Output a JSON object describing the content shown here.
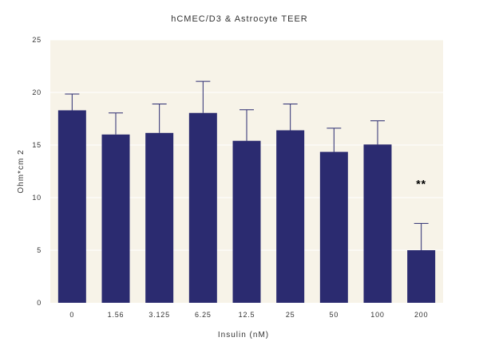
{
  "chart_data": {
    "type": "bar",
    "title": "hCMEC/D3 & Astrocyte TEER",
    "xlabel": "Insulin (nM)",
    "ylabel": "Ohm*cm 2",
    "categories": [
      "0",
      "1.56",
      "3.125",
      "6.25",
      "12.5",
      "25",
      "50",
      "100",
      "200"
    ],
    "values": [
      18.3,
      16.0,
      16.15,
      18.05,
      15.4,
      16.4,
      14.35,
      15.05,
      5.0
    ],
    "errors": [
      1.55,
      2.05,
      2.75,
      3.0,
      2.95,
      2.5,
      2.25,
      2.25,
      2.55
    ],
    "ylim": [
      0,
      25
    ],
    "yticks": [
      0,
      5,
      10,
      15,
      20,
      25
    ],
    "grid": true,
    "annotations": [
      {
        "category": "200",
        "text": "**"
      }
    ],
    "colors": {
      "bar": "#2b2b70",
      "plot_background": "#f7f3e8",
      "grid": "#ffffff",
      "error_bar": "#2b2b70"
    }
  }
}
